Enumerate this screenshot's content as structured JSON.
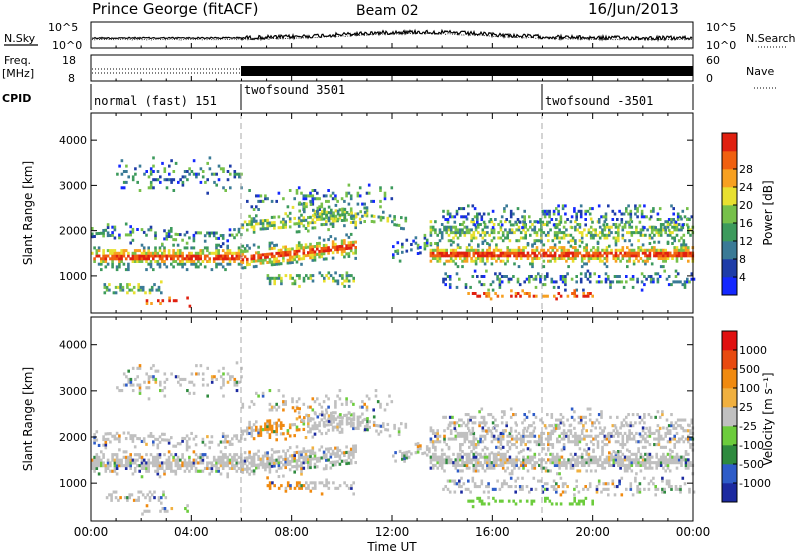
{
  "header": {
    "station": "Prince George (fitACF)",
    "beam": "Beam 02",
    "date": "16/Jun/2013"
  },
  "panels": {
    "noise": {
      "left_label": "N.Sky",
      "right_label": "N.Search",
      "ticks": [
        "10^5",
        "10^0"
      ],
      "right_ticks": [
        "10^5",
        "10^0"
      ]
    },
    "freq": {
      "left_label_1": "Freq.",
      "left_label_2": "[MHz]",
      "right_label": "Nave",
      "ticks": [
        "18",
        "8"
      ],
      "right_ticks": [
        "60",
        "0"
      ]
    },
    "cpid": {
      "label": "CPID",
      "segments": [
        {
          "text": "normal (fast) 151",
          "start_h": 0
        },
        {
          "text": "twofsound 3501",
          "start_h": 6
        },
        {
          "text": "twofsound -3501",
          "start_h": 18
        }
      ]
    }
  },
  "chart_data": [
    {
      "type": "heatmap",
      "title": "",
      "xlabel": "Time UT",
      "ylabel": "Slant Range [km]",
      "xlim": [
        0,
        24
      ],
      "ylim": [
        180,
        4600
      ],
      "x_ticks": [
        "00:00",
        "04:00",
        "08:00",
        "12:00",
        "16:00",
        "20:00",
        "00:00"
      ],
      "y_ticks": [
        1000,
        2000,
        3000,
        4000
      ],
      "colorbar": {
        "label": "Power [dB]",
        "ticks": [
          "4",
          "8",
          "12",
          "16",
          "20",
          "24",
          "28"
        ],
        "colors": [
          "#1428ff",
          "#1e3ca8",
          "#3a7a96",
          "#3c9a5c",
          "#76c04a",
          "#e8e030",
          "#f7a020",
          "#f06010",
          "#e02010"
        ]
      }
    },
    {
      "type": "heatmap",
      "title": "",
      "xlabel": "Time UT",
      "ylabel": "Slant Range [km]",
      "xlim": [
        0,
        24
      ],
      "ylim": [
        180,
        4600
      ],
      "x_ticks": [
        "00:00",
        "04:00",
        "08:00",
        "12:00",
        "16:00",
        "20:00",
        "00:00"
      ],
      "y_ticks": [
        1000,
        2000,
        3000,
        4000
      ],
      "colorbar": {
        "label": "Velocity [m s⁻¹]",
        "ticks": [
          "1000",
          "500",
          "100",
          "25",
          "-25",
          "-100",
          "-500",
          "-1000"
        ],
        "colors": [
          "#1c2aa0",
          "#2e5cc8",
          "#2e8a3e",
          "#6ccc3c",
          "#c0c0c0",
          "#f0b040",
          "#f08a10",
          "#e84a10",
          "#e01010"
        ]
      }
    }
  ],
  "axis": {
    "xlabel": "Time UT"
  }
}
